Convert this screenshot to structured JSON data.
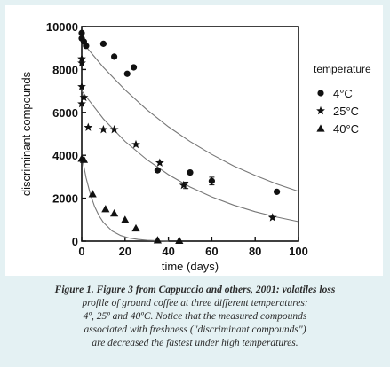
{
  "chart_data": {
    "type": "scatter",
    "xlabel": "time (days)",
    "ylabel": "discriminant compounds",
    "xlim": [
      0,
      100
    ],
    "ylim": [
      0,
      10000
    ],
    "x_ticks": [
      0,
      20,
      40,
      60,
      80,
      100
    ],
    "y_ticks": [
      0,
      2000,
      4000,
      6000,
      8000,
      10000
    ],
    "x_tick_labels": [
      "0",
      "20",
      "40",
      "60",
      "80",
      "100"
    ],
    "y_tick_labels": [
      "0",
      "2000",
      "4000",
      "6000",
      "8000",
      "10000"
    ],
    "grid": false,
    "legend_title": "temperature",
    "legend_position": "right",
    "series": [
      {
        "name": "4°C",
        "marker": "circle",
        "points": [
          [
            0,
            9700
          ],
          [
            0,
            9450
          ],
          [
            1,
            9300
          ],
          [
            2,
            9100
          ],
          [
            10,
            9200
          ],
          [
            15,
            8600
          ],
          [
            21,
            7800
          ],
          [
            24,
            8100
          ],
          [
            35,
            3300
          ],
          [
            50,
            3200
          ],
          [
            60,
            2800
          ],
          [
            90,
            2300
          ]
        ],
        "fit": [
          [
            0,
            9300
          ],
          [
            10,
            8100
          ],
          [
            20,
            7050
          ],
          [
            30,
            6130
          ],
          [
            40,
            5330
          ],
          [
            50,
            4640
          ],
          [
            60,
            4040
          ],
          [
            70,
            3510
          ],
          [
            80,
            3060
          ],
          [
            90,
            2660
          ],
          [
            100,
            2320
          ]
        ]
      },
      {
        "name": "25°C",
        "marker": "star",
        "points": [
          [
            0,
            8500
          ],
          [
            0,
            8300
          ],
          [
            0,
            7200
          ],
          [
            0,
            6400
          ],
          [
            1,
            6700
          ],
          [
            3,
            5300
          ],
          [
            10,
            5200
          ],
          [
            15,
            5200
          ],
          [
            25,
            4500
          ],
          [
            36,
            3650
          ],
          [
            47,
            2600
          ],
          [
            88,
            1100
          ]
        ],
        "fit": [
          [
            0,
            7000
          ],
          [
            10,
            5700
          ],
          [
            20,
            4650
          ],
          [
            30,
            3800
          ],
          [
            40,
            3100
          ],
          [
            50,
            2520
          ],
          [
            60,
            2060
          ],
          [
            70,
            1680
          ],
          [
            80,
            1370
          ],
          [
            90,
            1120
          ],
          [
            100,
            910
          ]
        ]
      },
      {
        "name": "40°C",
        "marker": "triangle",
        "points": [
          [
            0,
            3850
          ],
          [
            1,
            3800
          ],
          [
            5,
            2200
          ],
          [
            11,
            1500
          ],
          [
            15,
            1300
          ],
          [
            20,
            1000
          ],
          [
            25,
            600
          ],
          [
            35,
            50
          ],
          [
            45,
            30
          ]
        ],
        "fit": [
          [
            0,
            4000
          ],
          [
            2,
            2950
          ],
          [
            4,
            2170
          ],
          [
            6,
            1600
          ],
          [
            8,
            1180
          ],
          [
            10,
            870
          ],
          [
            14,
            470
          ],
          [
            18,
            260
          ],
          [
            22,
            140
          ],
          [
            26,
            80
          ],
          [
            30,
            40
          ],
          [
            40,
            5
          ]
        ]
      }
    ],
    "error_bars": [
      {
        "x": 48,
        "y": 2600,
        "err": 150
      },
      {
        "x": 60,
        "y": 2800,
        "err": 180
      }
    ]
  },
  "caption": {
    "lines": [
      "Figure 1. Figure 3 from Cappuccio and others, 2001: volatiles loss",
      "profile of ground coffee at three different temperatures:",
      "4º, 25º and 40ºC. Notice that the measured compounds",
      "associated with freshness (\"discriminant compounds\")",
      "are decreased the fastest under high temperatures."
    ]
  },
  "colors": {
    "background": "#e4f1f3",
    "panel": "#ffffff",
    "ink": "#111111",
    "fit_line": "#777777"
  }
}
